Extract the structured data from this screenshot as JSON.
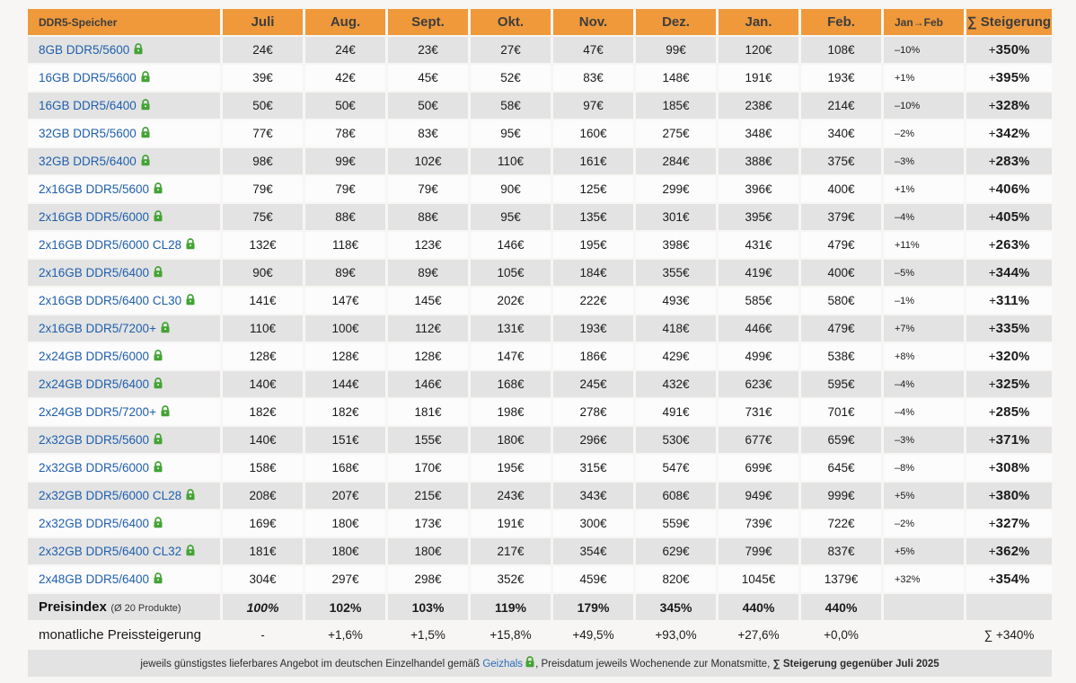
{
  "chart_data": {
    "type": "table",
    "unit": "€",
    "columns": [
      "DDR5-Speicher",
      "Juli",
      "Aug.",
      "Sept.",
      "Okt.",
      "Nov.",
      "Dez.",
      "Jan.",
      "Feb.",
      "Jan→Feb",
      "∑ Steigerung"
    ],
    "rows": [
      {
        "name": "8GB DDR5/5600",
        "prices": [
          24,
          24,
          23,
          27,
          47,
          99,
          120,
          108
        ],
        "jan_feb": "–10%",
        "total": "+350%"
      },
      {
        "name": "16GB DDR5/5600",
        "prices": [
          39,
          42,
          45,
          52,
          83,
          148,
          191,
          193
        ],
        "jan_feb": "+1%",
        "total": "+395%"
      },
      {
        "name": "16GB DDR5/6400",
        "prices": [
          50,
          50,
          50,
          58,
          97,
          185,
          238,
          214
        ],
        "jan_feb": "–10%",
        "total": "+328%"
      },
      {
        "name": "32GB DDR5/5600",
        "prices": [
          77,
          78,
          83,
          95,
          160,
          275,
          348,
          340
        ],
        "jan_feb": "–2%",
        "total": "+342%"
      },
      {
        "name": "32GB DDR5/6400",
        "prices": [
          98,
          99,
          102,
          110,
          161,
          284,
          388,
          375
        ],
        "jan_feb": "–3%",
        "total": "+283%"
      },
      {
        "name": "2x16GB DDR5/5600",
        "prices": [
          79,
          79,
          79,
          90,
          125,
          299,
          396,
          400
        ],
        "jan_feb": "+1%",
        "total": "+406%"
      },
      {
        "name": "2x16GB DDR5/6000",
        "prices": [
          75,
          88,
          88,
          95,
          135,
          301,
          395,
          379
        ],
        "jan_feb": "–4%",
        "total": "+405%"
      },
      {
        "name": "2x16GB DDR5/6000 CL28",
        "prices": [
          132,
          118,
          123,
          146,
          195,
          398,
          431,
          479
        ],
        "jan_feb": "+11%",
        "total": "+263%"
      },
      {
        "name": "2x16GB DDR5/6400",
        "prices": [
          90,
          89,
          89,
          105,
          184,
          355,
          419,
          400
        ],
        "jan_feb": "–5%",
        "total": "+344%"
      },
      {
        "name": "2x16GB DDR5/6400 CL30",
        "prices": [
          141,
          147,
          145,
          202,
          222,
          493,
          585,
          580
        ],
        "jan_feb": "–1%",
        "total": "+311%"
      },
      {
        "name": "2x16GB DDR5/7200+",
        "prices": [
          110,
          100,
          112,
          131,
          193,
          418,
          446,
          479
        ],
        "jan_feb": "+7%",
        "total": "+335%"
      },
      {
        "name": "2x24GB DDR5/6000",
        "prices": [
          128,
          128,
          128,
          147,
          186,
          429,
          499,
          538
        ],
        "jan_feb": "+8%",
        "total": "+320%"
      },
      {
        "name": "2x24GB DDR5/6400",
        "prices": [
          140,
          144,
          146,
          168,
          245,
          432,
          623,
          595
        ],
        "jan_feb": "–4%",
        "total": "+325%"
      },
      {
        "name": "2x24GB DDR5/7200+",
        "prices": [
          182,
          182,
          181,
          198,
          278,
          491,
          731,
          701
        ],
        "jan_feb": "–4%",
        "total": "+285%"
      },
      {
        "name": "2x32GB DDR5/5600",
        "prices": [
          140,
          151,
          155,
          180,
          296,
          530,
          677,
          659
        ],
        "jan_feb": "–3%",
        "total": "+371%"
      },
      {
        "name": "2x32GB DDR5/6000",
        "prices": [
          158,
          168,
          170,
          195,
          315,
          547,
          699,
          645
        ],
        "jan_feb": "–8%",
        "total": "+308%"
      },
      {
        "name": "2x32GB DDR5/6000 CL28",
        "prices": [
          208,
          207,
          215,
          243,
          343,
          608,
          949,
          999
        ],
        "jan_feb": "+5%",
        "total": "+380%"
      },
      {
        "name": "2x32GB DDR5/6400",
        "prices": [
          169,
          180,
          173,
          191,
          300,
          559,
          739,
          722
        ],
        "jan_feb": "–2%",
        "total": "+327%"
      },
      {
        "name": "2x32GB DDR5/6400 CL32",
        "prices": [
          181,
          180,
          180,
          217,
          354,
          629,
          799,
          837
        ],
        "jan_feb": "+5%",
        "total": "+362%"
      },
      {
        "name": "2x48GB DDR5/6400",
        "prices": [
          304,
          297,
          298,
          352,
          459,
          820,
          1045,
          1379
        ],
        "jan_feb": "+32%",
        "total": "+354%"
      }
    ],
    "preisindex": {
      "label": "Preisindex",
      "label_suffix": "(Ø 20 Produkte)",
      "values": [
        "100%",
        "102%",
        "103%",
        "119%",
        "179%",
        "345%",
        "440%",
        "440%"
      ]
    },
    "monthly": {
      "label": "monatliche Preissteigerung",
      "values": [
        "-",
        "+1,6%",
        "+1,5%",
        "+15,8%",
        "+49,5%",
        "+93,0%",
        "+27,6%",
        "+0,0%"
      ],
      "total": "∑ +340%"
    },
    "footer": {
      "before_link": "jeweils günstigstes lieferbares Angebot im deutschen Einzelhandel gemäß ",
      "link_label": "Geizhals",
      "after_link": ", Preisdatum jeweils Wochenende zur Monatsmitte, ",
      "bold_note": "∑ Steigerung gegenüber Juli 2025"
    }
  },
  "colors": {
    "header_orange": "#ef993b",
    "header_text": "#3d3d3d",
    "row_gray": "#e3e3e3",
    "row_white": "#fcfcfc",
    "page_background": "#f7f6f4",
    "link_blue": "#1f5fad",
    "lock_green": "#44a335",
    "text_dark": "#1b1b1b"
  }
}
